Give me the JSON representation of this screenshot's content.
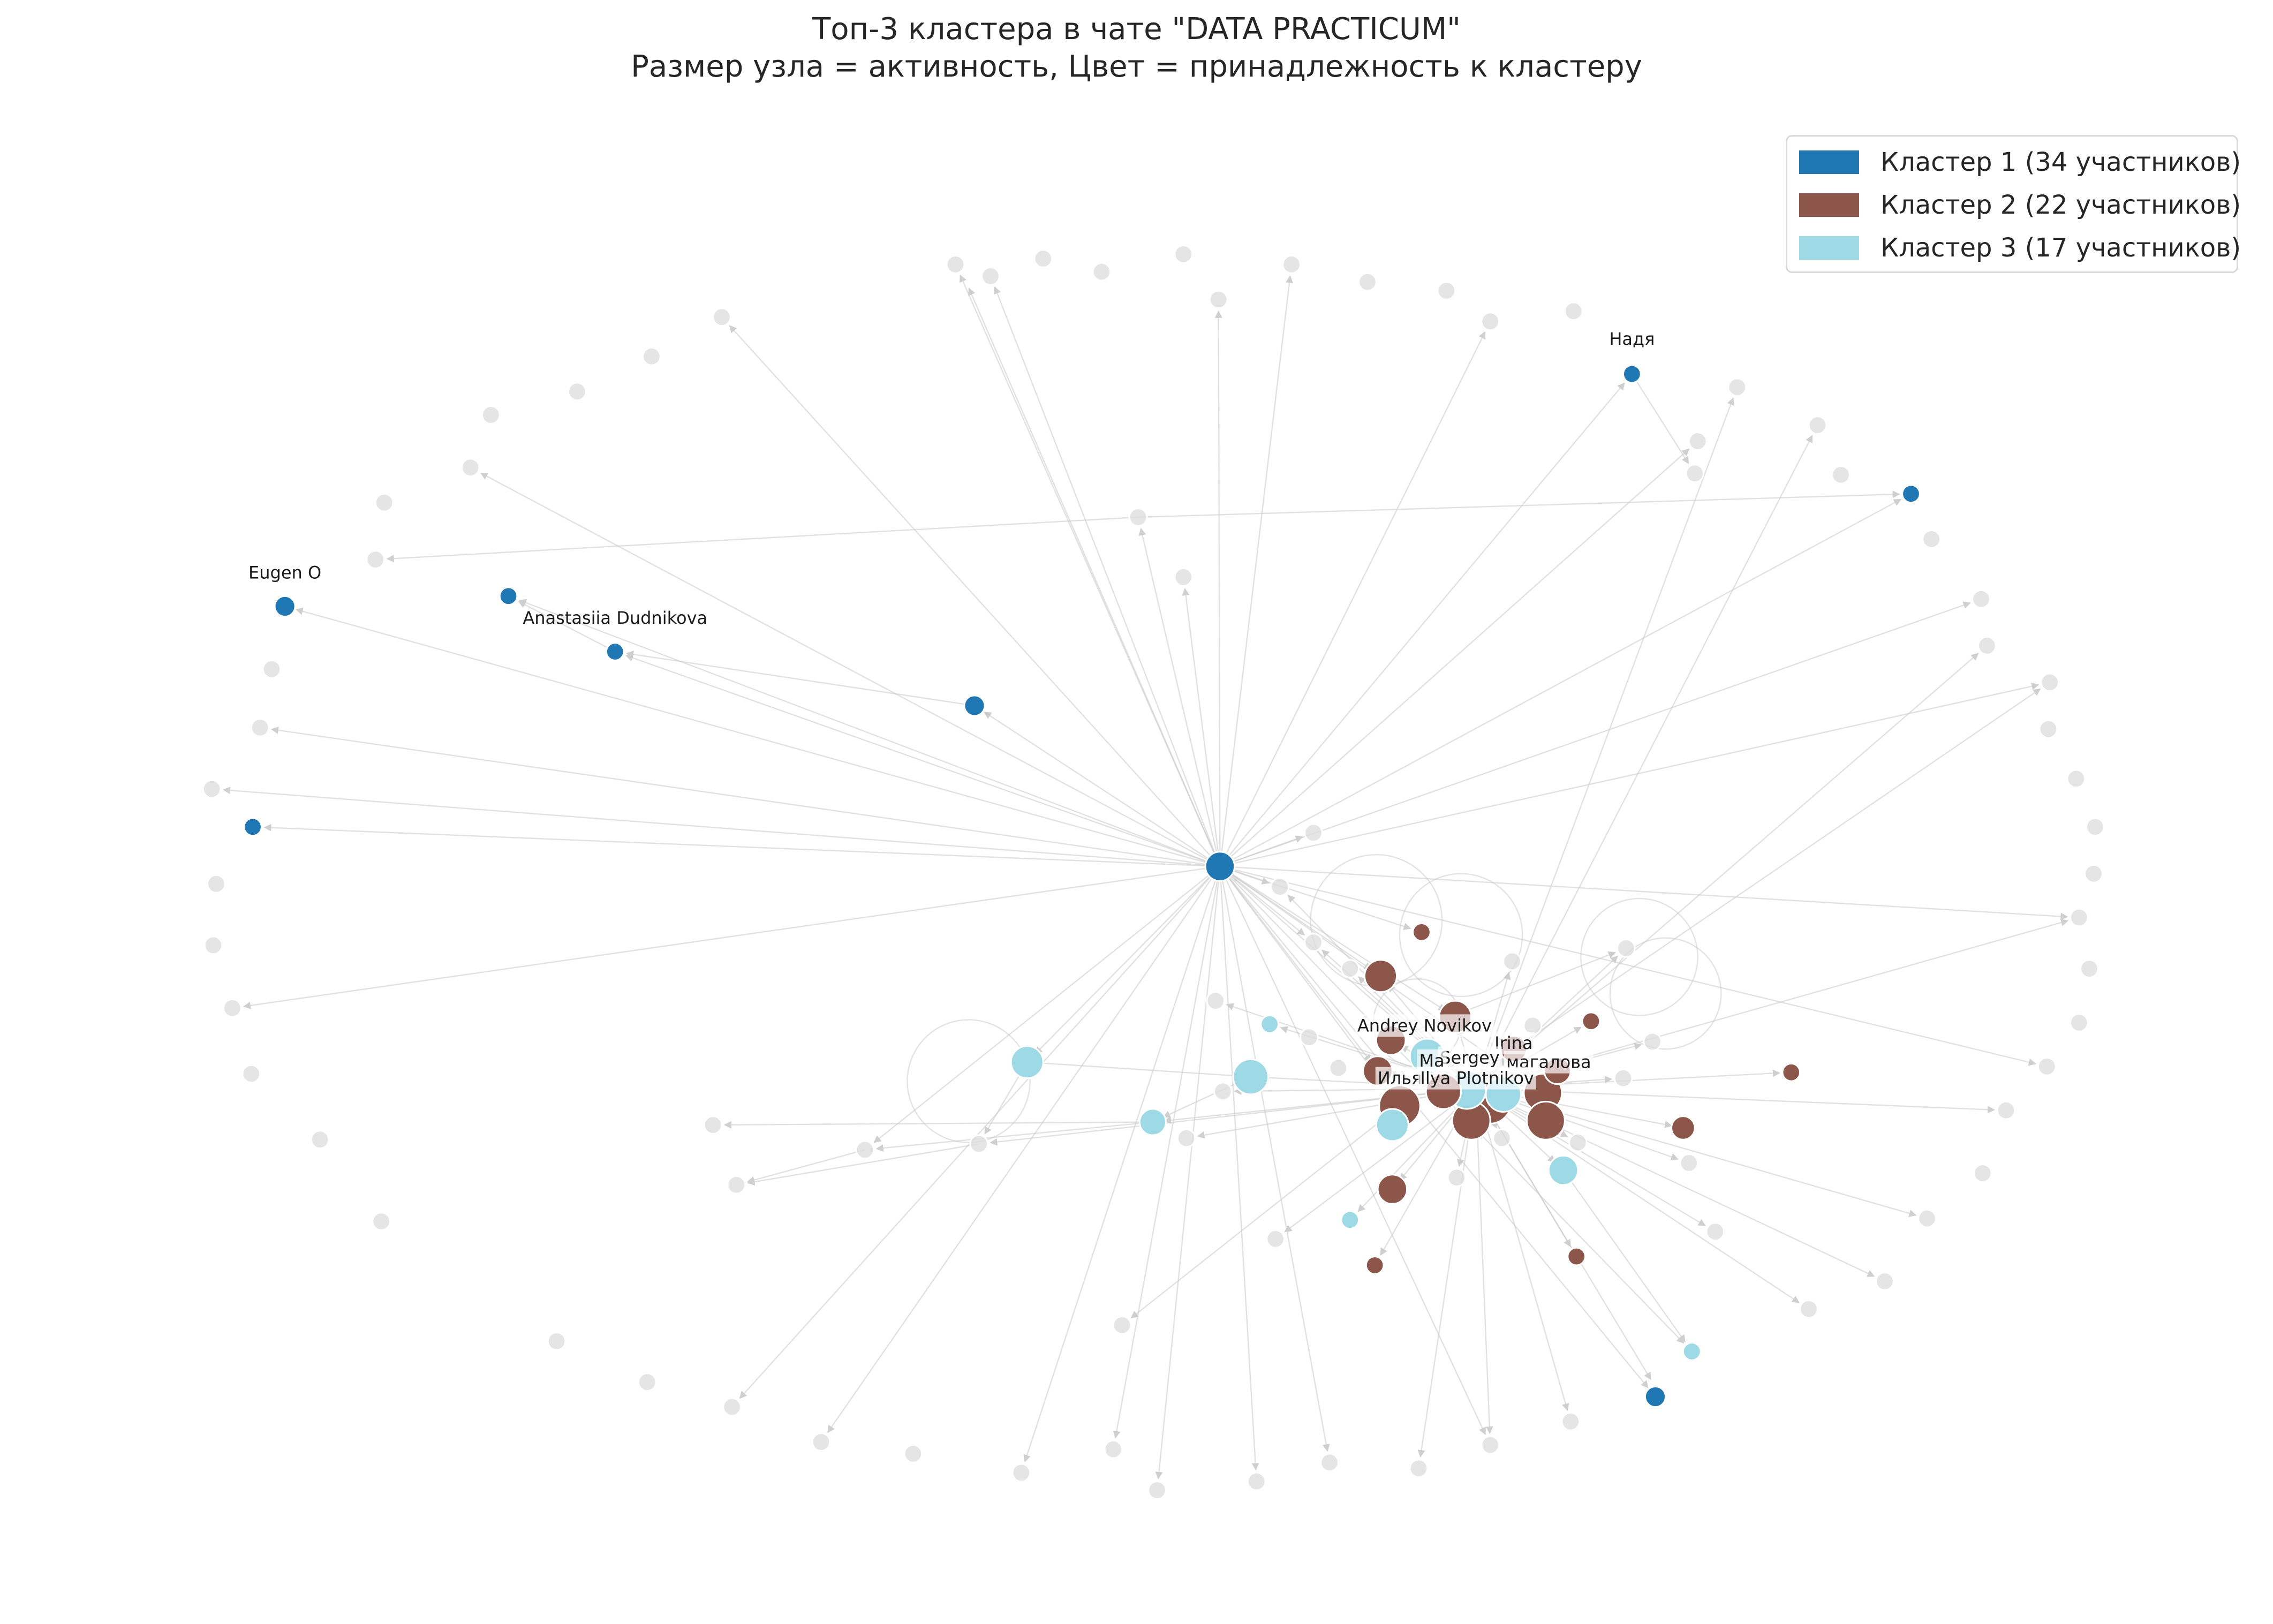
{
  "title": {
    "line1": "Топ-3 кластера в чате \"DATA PRACTICUM\"",
    "line2": "Размер узла = активность, Цвет = принадлежность к кластеру"
  },
  "colors": {
    "cluster1": "#1f77b4",
    "cluster2": "#8c564b",
    "cluster3": "#9edae5",
    "other": "#dcdcdc",
    "edge": "#c8c8c8"
  },
  "legend": {
    "placement": "upper right",
    "items": [
      {
        "label": "Кластер 1 (34 участников)",
        "color": "#1f77b4"
      },
      {
        "label": "Кластер 2 (22 участников)",
        "color": "#8c564b"
      },
      {
        "label": "Кластер 3 (17 участников)",
        "color": "#9edae5"
      }
    ]
  },
  "node_labels": [
    "Надя",
    "Eugen O",
    "Anastasiia Dudnikova",
    "Andrey Novikov",
    "Irina",
    "Sergey",
    "Ma",
    "магалова",
    "Илья",
    "Ilya Plotnikov"
  ]
}
